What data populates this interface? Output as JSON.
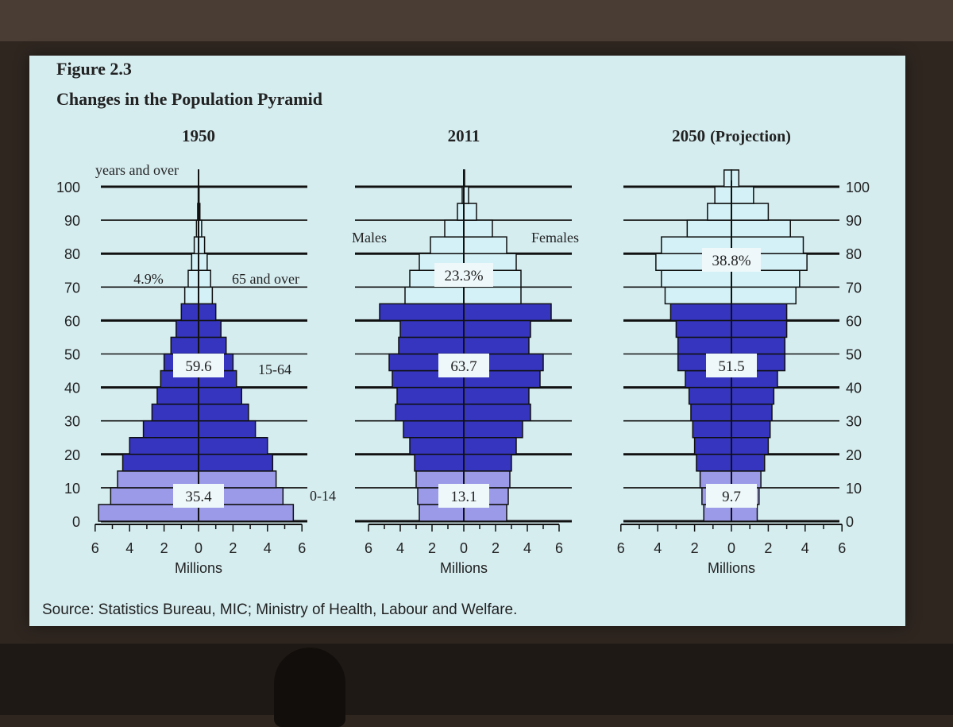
{
  "figure_label": "Figure 2.3",
  "title": "Changes in the Population Pyramid",
  "source": "Source:  Statistics Bureau, MIC;  Ministry of Health, Labour and Welfare.",
  "colors": {
    "slide_background": "#d6edf0",
    "age_0_14": "#9a9ae8",
    "age_15_64": "#3535c0",
    "age_65_over": "#d3f1f6",
    "outline": "#101010"
  },
  "chart_data": [
    {
      "type": "population-pyramid",
      "year": "1950",
      "subtitle": "",
      "xlabel": "Millions",
      "xlim": [
        -6,
        6
      ],
      "xticks": [
        "6",
        "4",
        "2",
        "0",
        "2",
        "4",
        "6"
      ],
      "age_axis_label": "years and over",
      "age_ticks": [
        "100",
        "90",
        "80",
        "70",
        "60",
        "50",
        "40",
        "30",
        "20",
        "10",
        "0"
      ],
      "age_group_size": 5,
      "males": [
        5.8,
        5.1,
        4.7,
        4.4,
        4.0,
        3.2,
        2.7,
        2.4,
        2.2,
        2.0,
        1.6,
        1.3,
        1.0,
        0.8,
        0.6,
        0.4,
        0.25,
        0.12,
        0.05,
        0.02,
        0.01
      ],
      "females": [
        5.5,
        4.9,
        4.5,
        4.3,
        4.0,
        3.3,
        2.9,
        2.5,
        2.2,
        2.0,
        1.6,
        1.3,
        1.0,
        0.8,
        0.7,
        0.5,
        0.35,
        0.18,
        0.08,
        0.03,
        0.01
      ],
      "shares": {
        "age_0_14": "35.4",
        "age_15_64": "59.6",
        "age_65_over": "4.9%"
      },
      "group_labels": {
        "age_0_14": "0-14",
        "age_15_64": "15-64",
        "age_65_over": "65 and over"
      }
    },
    {
      "type": "population-pyramid",
      "year": "2011",
      "subtitle": "",
      "xlabel": "Millions",
      "xlim": [
        -6,
        6
      ],
      "xticks": [
        "6",
        "4",
        "2",
        "0",
        "2",
        "4",
        "6"
      ],
      "males_label": "Males",
      "females_label": "Females",
      "age_group_size": 5,
      "males": [
        2.8,
        2.9,
        3.0,
        3.1,
        3.4,
        3.8,
        4.3,
        4.2,
        4.5,
        4.7,
        4.1,
        4.0,
        5.3,
        3.7,
        3.4,
        2.8,
        2.1,
        1.2,
        0.4,
        0.1,
        0.01
      ],
      "females": [
        2.7,
        2.8,
        2.9,
        3.0,
        3.3,
        3.7,
        4.2,
        4.1,
        4.8,
        5.0,
        4.1,
        4.2,
        5.5,
        3.6,
        3.6,
        3.3,
        2.7,
        1.8,
        0.8,
        0.3,
        0.05
      ],
      "shares": {
        "age_0_14": "13.1",
        "age_15_64": "63.7",
        "age_65_over": "23.3%"
      }
    },
    {
      "type": "population-pyramid",
      "year": "2050",
      "subtitle": "(Projection)",
      "xlabel": "Millions",
      "xlim": [
        -6,
        6
      ],
      "xticks": [
        "6",
        "4",
        "2",
        "0",
        "2",
        "4",
        "6"
      ],
      "age_ticks": [
        "100",
        "90",
        "80",
        "70",
        "60",
        "50",
        "40",
        "30",
        "20",
        "10",
        "0"
      ],
      "age_group_size": 5,
      "males": [
        1.5,
        1.6,
        1.7,
        1.9,
        2.0,
        2.1,
        2.2,
        2.3,
        2.5,
        2.9,
        2.9,
        3.0,
        3.3,
        3.6,
        3.8,
        4.1,
        3.8,
        2.4,
        1.3,
        0.9,
        0.4
      ],
      "females": [
        1.4,
        1.5,
        1.6,
        1.8,
        2.0,
        2.1,
        2.2,
        2.3,
        2.5,
        2.9,
        2.9,
        3.0,
        3.0,
        3.5,
        3.7,
        4.1,
        3.9,
        3.2,
        2.0,
        1.2,
        0.4
      ],
      "shares": {
        "age_0_14": "9.7",
        "age_15_64": "51.5",
        "age_65_over": "38.8%"
      }
    }
  ]
}
